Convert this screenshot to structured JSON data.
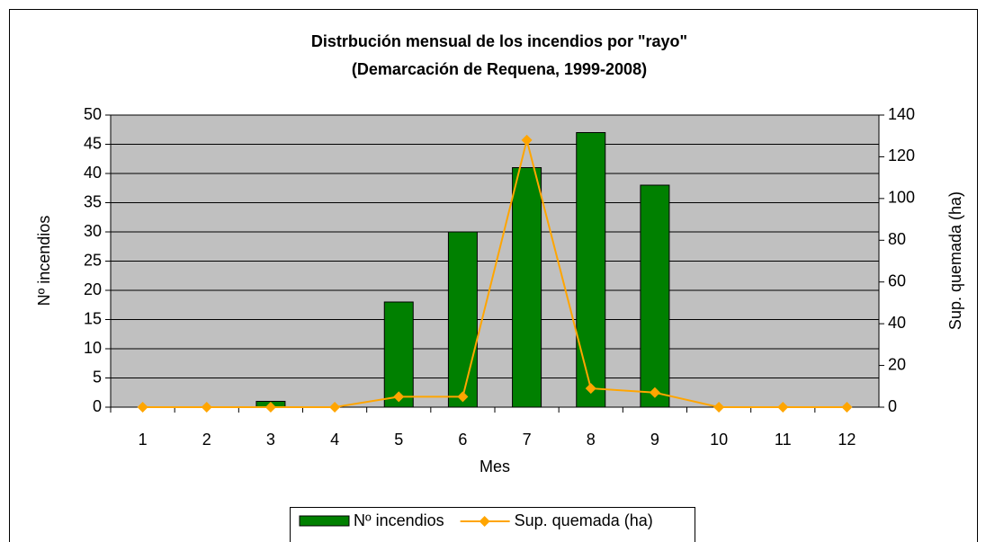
{
  "chart_data": {
    "type": "bar",
    "title": "Distrbución mensual de los incendios por \"rayo\"",
    "subtitle": "(Demarcación de Requena, 1999-2008)",
    "xlabel": "Mes",
    "ylabel": "Nº incendios",
    "y2label": "Sup. quemada (ha)",
    "categories": [
      "1",
      "2",
      "3",
      "4",
      "5",
      "6",
      "7",
      "8",
      "9",
      "10",
      "11",
      "12"
    ],
    "series": [
      {
        "name": "Nº incendios",
        "color": "#008000",
        "values": [
          0,
          0,
          1,
          0,
          18,
          30,
          41,
          47,
          38,
          0,
          0,
          0
        ]
      },
      {
        "name": "Sup. quemada (ha)",
        "color": "#ffa500",
        "type": "line",
        "axis": "y2",
        "values": [
          0,
          0,
          0,
          0,
          5,
          5,
          128,
          9,
          7,
          0,
          0,
          0
        ]
      }
    ],
    "ylim": [
      0,
      50
    ],
    "yticks": [
      0,
      5,
      10,
      15,
      20,
      25,
      30,
      35,
      40,
      45,
      50
    ],
    "y2lim": [
      0,
      140
    ],
    "y2ticks": [
      0,
      20,
      40,
      60,
      80,
      100,
      120,
      140
    ],
    "grid": true,
    "legend": "bottom"
  }
}
